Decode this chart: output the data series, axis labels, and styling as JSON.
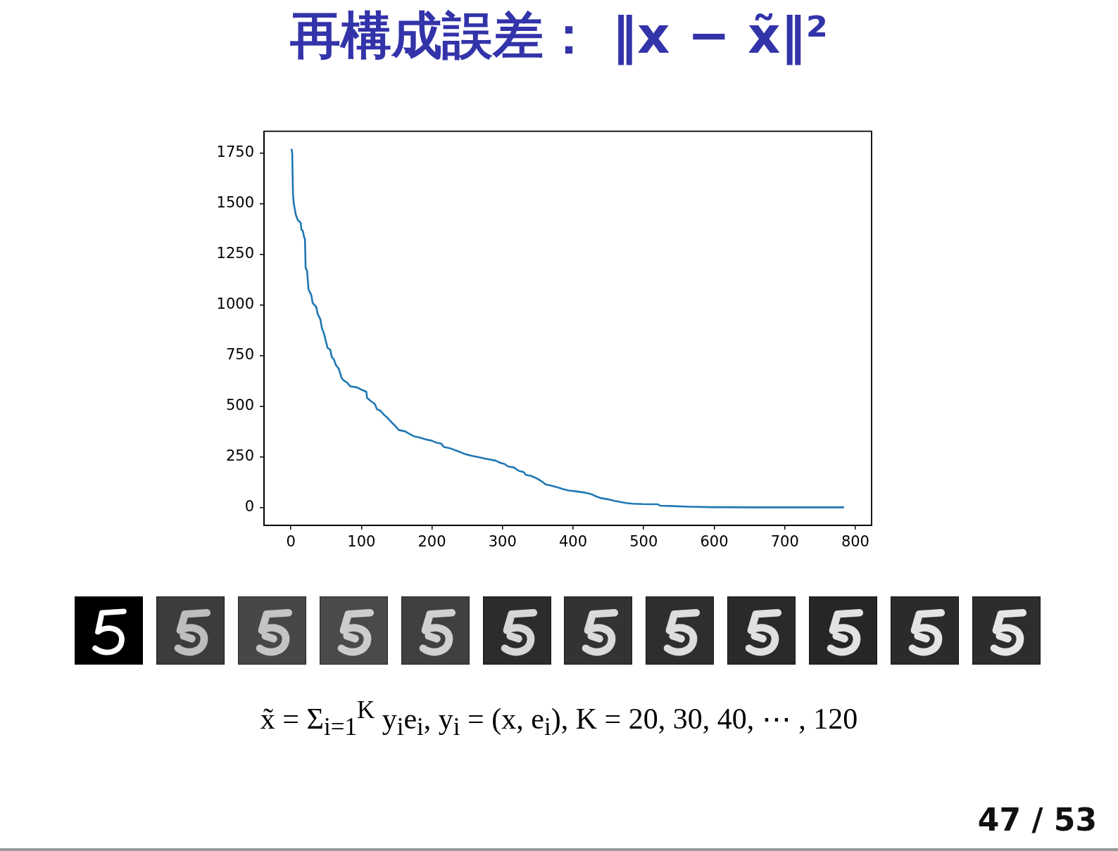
{
  "chart_data": {
    "type": "line",
    "title": "再構成誤差： ‖x − x̃‖²",
    "x": [
      1,
      2,
      3,
      4,
      7,
      10,
      14,
      15,
      17,
      19,
      20,
      21,
      23,
      25,
      29,
      31,
      36,
      38,
      42,
      44,
      47,
      49,
      52,
      56,
      58,
      61,
      64,
      68,
      72,
      75,
      80,
      84,
      94,
      100,
      107,
      108,
      114,
      119,
      122,
      127,
      133,
      137,
      143,
      148,
      153,
      162,
      168,
      175,
      183,
      192,
      200,
      205,
      213,
      217,
      227,
      236,
      247,
      256,
      266,
      276,
      290,
      296,
      303,
      308,
      316,
      323,
      330,
      333,
      340,
      349,
      357,
      361,
      369,
      379,
      386,
      393,
      406,
      416,
      426,
      432,
      439,
      449,
      459,
      466,
      475,
      485,
      499,
      520,
      524,
      542,
      565,
      598,
      658,
      784
    ],
    "values": [
      1770,
      1746,
      1550,
      1504,
      1446,
      1417,
      1406,
      1371,
      1365,
      1331,
      1327,
      1181,
      1169,
      1077,
      1048,
      1008,
      990,
      956,
      927,
      886,
      858,
      829,
      788,
      777,
      742,
      731,
      702,
      684,
      638,
      627,
      615,
      598,
      592,
      581,
      571,
      540,
      523,
      511,
      485,
      477,
      454,
      442,
      419,
      402,
      382,
      375,
      363,
      350,
      344,
      335,
      329,
      321,
      315,
      298,
      290,
      278,
      263,
      255,
      248,
      240,
      231,
      221,
      214,
      202,
      197,
      180,
      174,
      160,
      156,
      142,
      125,
      113,
      107,
      98,
      90,
      84,
      78,
      73,
      65,
      55,
      46,
      40,
      32,
      27,
      21,
      18,
      16,
      15,
      8,
      6,
      3,
      1,
      0,
      0
    ],
    "color": "#1f77b4",
    "xlim": [
      -38,
      823
    ],
    "ylim": [
      -89,
      1857
    ],
    "xticks": [
      0,
      100,
      200,
      300,
      400,
      500,
      600,
      700,
      800
    ],
    "yticks": [
      0,
      250,
      500,
      750,
      1000,
      1250,
      1500,
      1750
    ],
    "annotations": [
      "x̃ = Σ$_{i=1}$$^{K}$ y$_{i}$e$_{i}$,  y$_{i}$ = (x, e$_{i}$), K = 20, 30, 40, ⋯ , 120",
      "47 / 53"
    ]
  }
}
